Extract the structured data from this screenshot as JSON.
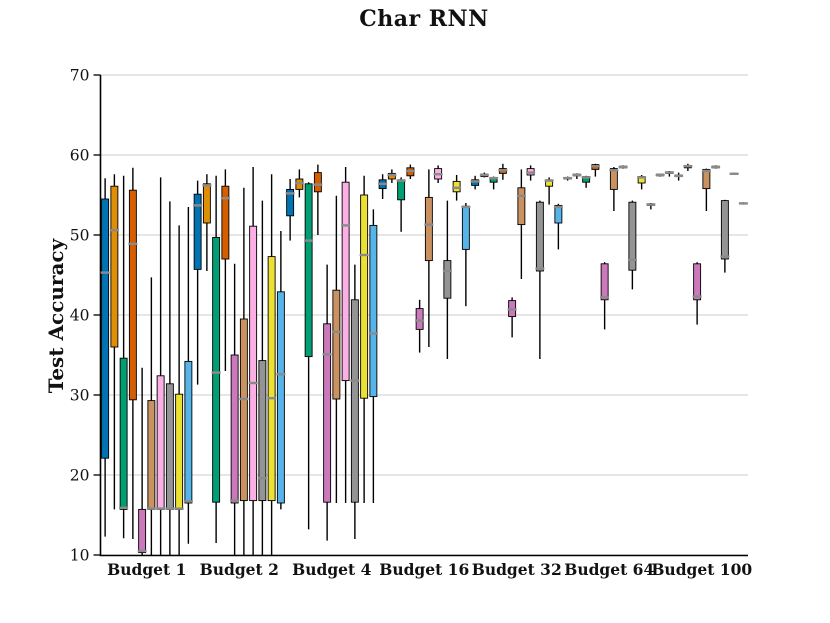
{
  "figure": {
    "title": "Char RNN",
    "background_color": "#ffffff"
  },
  "chart_data": {
    "type": "boxplot",
    "title": "Char RNN",
    "xlabel": "",
    "ylabel": "Test Accuracy",
    "ylim": [
      10,
      70
    ],
    "yticks": [
      10,
      20,
      30,
      40,
      50,
      60,
      70
    ],
    "grid": true,
    "legend": "none",
    "categories": [
      "Budget 1",
      "Budget 2",
      "Budget 4",
      "Budget 16",
      "Budget 32",
      "Budget 64",
      "Budget 100"
    ],
    "series_names": [
      "blue",
      "orange",
      "green",
      "vermilion",
      "orchid",
      "tan",
      "pink",
      "gray",
      "yellow",
      "sky"
    ],
    "palette": [
      "#0173B2",
      "#DE8F05",
      "#029E73",
      "#D55E00",
      "#CC78BC",
      "#CA9161",
      "#FBAFE4",
      "#949494",
      "#ECE133",
      "#56B4E9"
    ],
    "style_colors": {
      "gridline": "#cccccc",
      "spine": "#000000",
      "whisker": "#000000",
      "box_edge": "#000000",
      "median": "#8a8a8a",
      "text": "#111111"
    },
    "box_format": [
      "low_whisker",
      "q1",
      "median",
      "q3",
      "high_whisker"
    ],
    "groups": [
      {
        "label": "Budget 1",
        "boxes": [
          [
            12.3,
            22.1,
            45.3,
            54.5,
            57.1
          ],
          [
            15.7,
            36.0,
            50.6,
            56.1,
            57.6
          ],
          [
            12.1,
            15.7,
            15.9,
            34.6,
            57.4
          ],
          [
            12.0,
            29.4,
            48.9,
            55.6,
            58.4
          ],
          [
            10.0,
            10.3,
            10.5,
            15.7,
            33.4
          ],
          [
            10.0,
            15.7,
            15.8,
            29.3,
            44.7
          ],
          [
            10.0,
            15.7,
            15.8,
            32.4,
            57.2
          ],
          [
            10.0,
            15.7,
            15.8,
            31.4,
            54.2
          ],
          [
            10.0,
            15.7,
            15.8,
            30.1,
            51.2
          ],
          [
            11.4,
            16.5,
            16.7,
            34.2,
            53.5
          ]
        ]
      },
      {
        "label": "Budget 2",
        "boxes": [
          [
            31.3,
            45.7,
            53.7,
            55.1,
            56.8
          ],
          [
            45.5,
            51.5,
            56.2,
            56.4,
            57.6
          ],
          [
            11.5,
            16.6,
            32.8,
            49.7,
            57.4
          ],
          [
            33.0,
            47.0,
            54.6,
            56.1,
            58.2
          ],
          [
            10.0,
            16.5,
            16.8,
            35.0,
            46.4
          ],
          [
            10.0,
            16.8,
            29.5,
            39.5,
            55.9
          ],
          [
            10.0,
            16.8,
            31.5,
            51.1,
            58.5
          ],
          [
            10.0,
            16.8,
            19.6,
            34.3,
            54.3
          ],
          [
            10.0,
            16.8,
            29.6,
            47.3,
            57.6
          ],
          [
            15.7,
            16.5,
            32.6,
            42.9,
            50.5
          ]
        ]
      },
      {
        "label": "Budget 4",
        "boxes": [
          [
            49.3,
            52.4,
            55.2,
            55.7,
            57.0
          ],
          [
            54.7,
            55.7,
            56.5,
            57.0,
            58.2
          ],
          [
            13.2,
            34.8,
            49.3,
            56.4,
            56.6
          ],
          [
            50.0,
            55.4,
            56.3,
            57.8,
            58.8
          ],
          [
            11.8,
            16.6,
            35.1,
            38.9,
            46.3
          ],
          [
            16.5,
            29.5,
            37.9,
            43.1,
            54.9
          ],
          [
            16.5,
            31.8,
            51.2,
            56.6,
            58.5
          ],
          [
            12.0,
            16.6,
            31.8,
            41.9,
            46.3
          ],
          [
            16.5,
            29.6,
            47.5,
            55.0,
            57.4
          ],
          [
            16.5,
            29.8,
            37.7,
            51.2,
            53.2
          ]
        ]
      },
      {
        "label": "Budget 16",
        "boxes": [
          [
            54.5,
            55.8,
            56.4,
            56.9,
            57.6
          ],
          [
            56.5,
            57.0,
            57.5,
            57.7,
            58.2
          ],
          [
            50.4,
            54.4,
            56.8,
            56.9,
            57.2
          ],
          [
            57.0,
            57.4,
            58.0,
            58.4,
            58.8
          ],
          [
            35.3,
            38.2,
            39.3,
            40.8,
            41.9
          ],
          [
            36.0,
            46.8,
            51.3,
            54.7,
            58.2
          ],
          [
            56.5,
            57.0,
            57.6,
            58.3,
            58.7
          ],
          [
            34.5,
            42.1,
            45.5,
            46.8,
            54.3
          ],
          [
            54.3,
            55.4,
            55.9,
            56.7,
            57.5
          ],
          [
            41.1,
            48.2,
            53.5,
            53.6,
            54.0
          ]
        ]
      },
      {
        "label": "Budget 32",
        "boxes": [
          [
            55.7,
            56.2,
            56.7,
            56.9,
            57.4
          ],
          [
            57.2,
            57.3,
            57.5,
            57.6,
            57.8
          ],
          [
            55.7,
            56.6,
            57.1,
            57.2,
            57.3
          ],
          [
            56.9,
            57.7,
            58.1,
            58.3,
            58.9
          ],
          [
            37.2,
            39.8,
            40.7,
            41.8,
            42.2
          ],
          [
            44.5,
            51.3,
            54.9,
            55.9,
            58.2
          ],
          [
            56.8,
            57.5,
            57.8,
            58.3,
            58.7
          ],
          [
            34.5,
            45.5,
            45.8,
            54.1,
            54.3
          ],
          [
            53.8,
            56.1,
            56.8,
            56.9,
            57.2
          ],
          [
            48.2,
            51.5,
            53.5,
            53.7,
            53.9
          ]
        ]
      },
      {
        "label": "Budget 64",
        "boxes": [
          [
            56.8,
            57.0,
            57.1,
            57.2,
            57.3
          ],
          [
            57.0,
            57.4,
            57.5,
            57.6,
            57.7
          ],
          [
            55.9,
            56.6,
            57.2,
            57.3,
            57.4
          ],
          [
            57.3,
            58.2,
            58.6,
            58.8,
            58.9
          ],
          [
            38.2,
            41.9,
            42.2,
            46.4,
            46.6
          ],
          [
            53.0,
            55.7,
            58.1,
            58.3,
            58.5
          ],
          [
            58.3,
            58.4,
            58.5,
            58.6,
            58.7
          ],
          [
            43.2,
            45.6,
            46.9,
            54.1,
            54.3
          ],
          [
            55.7,
            56.5,
            57.2,
            57.3,
            57.5
          ],
          [
            53.2,
            53.7,
            53.8,
            53.9,
            54.0
          ]
        ]
      },
      {
        "label": "Budget 100",
        "boxes": [
          [
            57.3,
            57.4,
            57.5,
            57.6,
            57.6
          ],
          [
            57.3,
            57.7,
            57.8,
            57.9,
            58.0
          ],
          [
            56.8,
            57.3,
            57.4,
            57.5,
            57.8
          ],
          [
            58.0,
            58.4,
            58.6,
            58.7,
            58.9
          ],
          [
            38.8,
            41.9,
            42.3,
            46.4,
            46.6
          ],
          [
            53.0,
            55.8,
            58.0,
            58.2,
            58.3
          ],
          [
            58.3,
            58.4,
            58.5,
            58.6,
            58.7
          ],
          [
            45.3,
            47.0,
            47.3,
            54.3,
            54.4
          ],
          [
            57.5,
            57.6,
            57.65,
            57.7,
            57.8
          ],
          [
            53.8,
            53.9,
            53.95,
            54.0,
            54.1
          ]
        ]
      }
    ]
  }
}
